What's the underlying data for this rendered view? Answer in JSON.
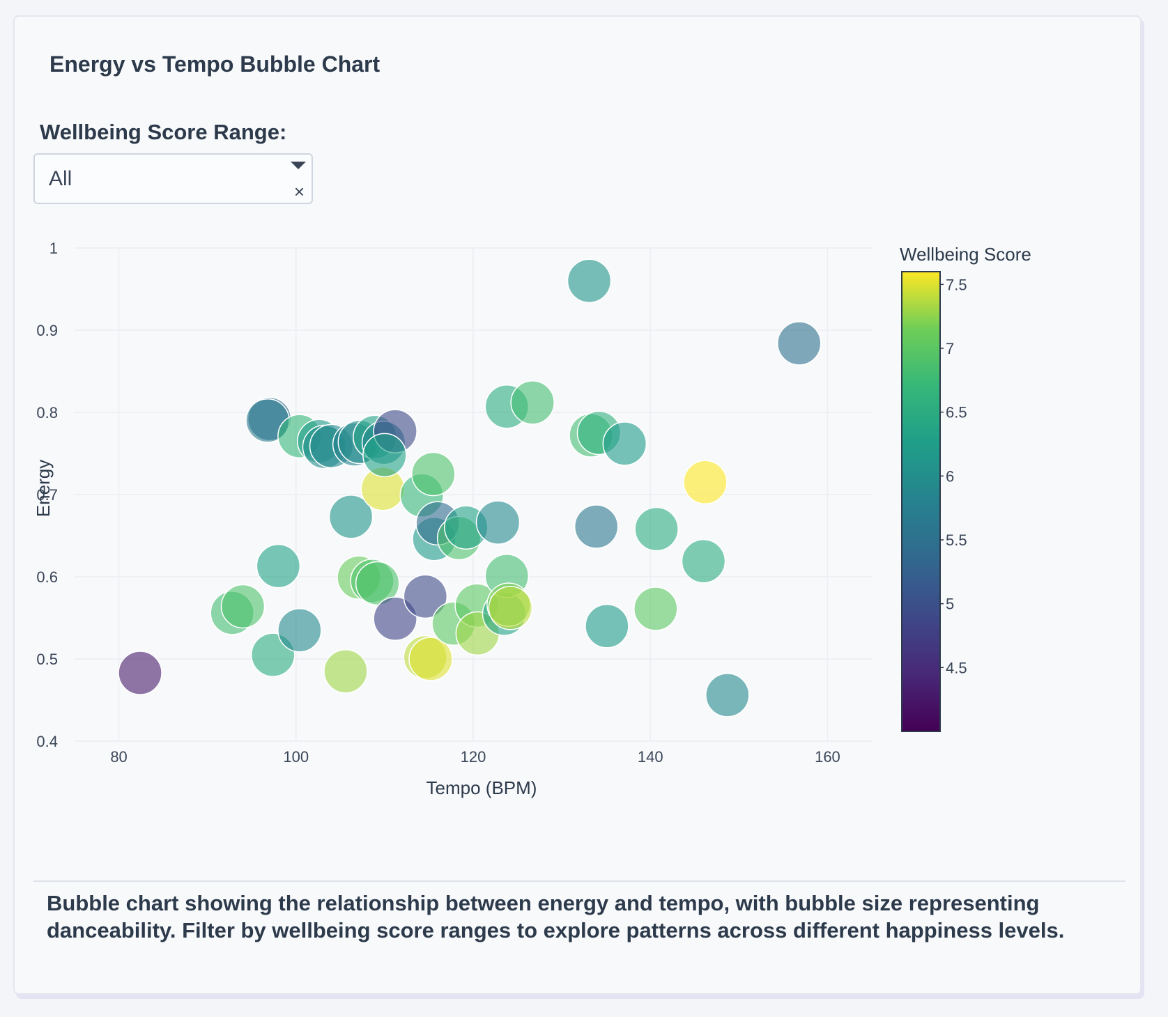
{
  "card": {
    "title": "Energy vs Tempo Bubble Chart",
    "filter_label": "Wellbeing Score Range:",
    "filter_value": "All",
    "filter_clear": "×",
    "caption": "Bubble chart showing the relationship between energy and tempo, with bubble size representing danceability. Filter by wellbeing score ranges to explore patterns across different happiness levels."
  },
  "icons": {
    "dropdown": "chevron-down-icon",
    "clear": "close-icon"
  },
  "chart_data": {
    "type": "scatter",
    "title": "",
    "xlabel": "Tempo (BPM)",
    "ylabel": "Energy",
    "xlim": [
      75,
      165
    ],
    "ylim": [
      0.4,
      1.0
    ],
    "x_ticks": [
      80,
      100,
      120,
      140,
      160
    ],
    "y_ticks": [
      0.4,
      0.5,
      0.6,
      0.7,
      0.8,
      0.9,
      1
    ],
    "grid": true,
    "colorbar": {
      "title": "Wellbeing Score",
      "range": [
        4.0,
        7.6
      ],
      "ticks": [
        4.5,
        5,
        5.5,
        6,
        6.5,
        7,
        7.5
      ],
      "colorscale": "viridis"
    },
    "size_variable": "danceability",
    "points": [
      {
        "tempo": 82.4,
        "energy": 0.483,
        "wellbeing": 4.3
      },
      {
        "tempo": 92.8,
        "energy": 0.556,
        "wellbeing": 6.8
      },
      {
        "tempo": 94.0,
        "energy": 0.564,
        "wellbeing": 6.9
      },
      {
        "tempo": 97.4,
        "energy": 0.505,
        "wellbeing": 6.5
      },
      {
        "tempo": 98.0,
        "energy": 0.613,
        "wellbeing": 6.3
      },
      {
        "tempo": 100.4,
        "energy": 0.535,
        "wellbeing": 5.9
      },
      {
        "tempo": 105.6,
        "energy": 0.485,
        "wellbeing": 7.3
      },
      {
        "tempo": 106.2,
        "energy": 0.673,
        "wellbeing": 6.1
      },
      {
        "tempo": 107.1,
        "energy": 0.599,
        "wellbeing": 7.1
      },
      {
        "tempo": 108.6,
        "energy": 0.595,
        "wellbeing": 6.9
      },
      {
        "tempo": 109.2,
        "energy": 0.592,
        "wellbeing": 6.9
      },
      {
        "tempo": 109.8,
        "energy": 0.707,
        "wellbeing": 7.5
      },
      {
        "tempo": 111.2,
        "energy": 0.549,
        "wellbeing": 4.8
      },
      {
        "tempo": 114.6,
        "energy": 0.576,
        "wellbeing": 4.9
      },
      {
        "tempo": 114.2,
        "energy": 0.699,
        "wellbeing": 6.7
      },
      {
        "tempo": 115.5,
        "energy": 0.725,
        "wellbeing": 6.9
      },
      {
        "tempo": 115.6,
        "energy": 0.646,
        "wellbeing": 6.2
      },
      {
        "tempo": 116.0,
        "energy": 0.665,
        "wellbeing": 5.4
      },
      {
        "tempo": 114.6,
        "energy": 0.502,
        "wellbeing": 7.4
      },
      {
        "tempo": 115.2,
        "energy": 0.5,
        "wellbeing": 7.5
      },
      {
        "tempo": 117.8,
        "energy": 0.543,
        "wellbeing": 7.0
      },
      {
        "tempo": 118.4,
        "energy": 0.647,
        "wellbeing": 6.9
      },
      {
        "tempo": 119.2,
        "energy": 0.66,
        "wellbeing": 6.3
      },
      {
        "tempo": 120.4,
        "energy": 0.565,
        "wellbeing": 7.0
      },
      {
        "tempo": 120.5,
        "energy": 0.531,
        "wellbeing": 7.3
      },
      {
        "tempo": 122.8,
        "energy": 0.666,
        "wellbeing": 5.9
      },
      {
        "tempo": 123.5,
        "energy": 0.555,
        "wellbeing": 6.3
      },
      {
        "tempo": 123.8,
        "energy": 0.601,
        "wellbeing": 6.8
      },
      {
        "tempo": 124.0,
        "energy": 0.566,
        "wellbeing": 7.2
      },
      {
        "tempo": 124.2,
        "energy": 0.562,
        "wellbeing": 7.4
      },
      {
        "tempo": 123.8,
        "energy": 0.807,
        "wellbeing": 6.5
      },
      {
        "tempo": 126.7,
        "energy": 0.812,
        "wellbeing": 6.8
      },
      {
        "tempo": 133.1,
        "energy": 0.96,
        "wellbeing": 6.1
      },
      {
        "tempo": 133.3,
        "energy": 0.772,
        "wellbeing": 6.8
      },
      {
        "tempo": 134.2,
        "energy": 0.775,
        "wellbeing": 6.6
      },
      {
        "tempo": 137.1,
        "energy": 0.762,
        "wellbeing": 6.2
      },
      {
        "tempo": 133.9,
        "energy": 0.661,
        "wellbeing": 5.6
      },
      {
        "tempo": 135.1,
        "energy": 0.54,
        "wellbeing": 6.2
      },
      {
        "tempo": 140.7,
        "energy": 0.658,
        "wellbeing": 6.5
      },
      {
        "tempo": 140.6,
        "energy": 0.561,
        "wellbeing": 7.0
      },
      {
        "tempo": 146.0,
        "energy": 0.619,
        "wellbeing": 6.5
      },
      {
        "tempo": 146.2,
        "energy": 0.715,
        "wellbeing": 7.6
      },
      {
        "tempo": 148.7,
        "energy": 0.456,
        "wellbeing": 5.9
      },
      {
        "tempo": 156.8,
        "energy": 0.884,
        "wellbeing": 5.5
      },
      {
        "tempo": 97.0,
        "energy": 0.792,
        "wellbeing": 5.4
      },
      {
        "tempo": 96.8,
        "energy": 0.79,
        "wellbeing": 5.7
      },
      {
        "tempo": 100.4,
        "energy": 0.771,
        "wellbeing": 6.7
      },
      {
        "tempo": 102.6,
        "energy": 0.765,
        "wellbeing": 6.2
      },
      {
        "tempo": 103.2,
        "energy": 0.758,
        "wellbeing": 6.0
      },
      {
        "tempo": 104.0,
        "energy": 0.759,
        "wellbeing": 5.9
      },
      {
        "tempo": 106.6,
        "energy": 0.761,
        "wellbeing": 5.8
      },
      {
        "tempo": 107.2,
        "energy": 0.764,
        "wellbeing": 6.0
      },
      {
        "tempo": 108.9,
        "energy": 0.77,
        "wellbeing": 6.3
      },
      {
        "tempo": 109.9,
        "energy": 0.763,
        "wellbeing": 5.9
      },
      {
        "tempo": 111.2,
        "energy": 0.777,
        "wellbeing": 4.9
      },
      {
        "tempo": 110.0,
        "energy": 0.748,
        "wellbeing": 6.3
      }
    ]
  }
}
